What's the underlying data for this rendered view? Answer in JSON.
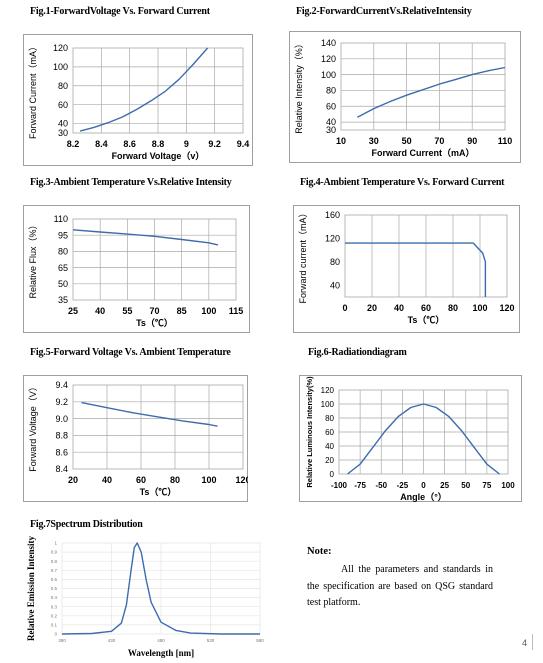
{
  "titles": {
    "fig1": "Fig.1-ForwardVoltage Vs. Forward Current",
    "fig2": "Fig.2-ForwardCurrentVs.RelativeIntensity",
    "fig3": "Fig.3-Ambient Temperature Vs.Relative Intensity",
    "fig4": "Fig.4-Ambient Temperature Vs. Forward Current",
    "fig5": "Fig.5-Forward Voltage Vs. Ambient Temperature",
    "fig6": "Fig.6-Radiationdiagram",
    "fig7": "Fig.7Spectrum Distribution"
  },
  "note": {
    "title": "Note:",
    "body": "All the parameters and standards in the specification are based on QSG standard test platform."
  },
  "page_number": "4",
  "chart_data": [
    {
      "id": "fig1",
      "type": "line",
      "title": "",
      "xlabel": "Forward Voltage（v）",
      "ylabel": "Forward Current（mA）",
      "xlim": [
        8.2,
        9.4
      ],
      "ylim": [
        30,
        120
      ],
      "xticks": [
        "8.2",
        "8.4",
        "8.6",
        "8.8",
        "9",
        "9.2",
        "9.4"
      ],
      "yticks": [
        "30",
        "40",
        "60",
        "80",
        "100",
        "120"
      ],
      "x": [
        8.25,
        8.35,
        8.45,
        8.55,
        8.65,
        8.75,
        8.85,
        8.95,
        9.05,
        9.15
      ],
      "y": [
        32,
        36,
        41,
        47,
        55,
        64,
        74,
        87,
        103,
        120
      ],
      "color": "#3d6cae"
    },
    {
      "id": "fig2",
      "type": "line",
      "title": "",
      "xlabel": "Forward Current（mA）",
      "ylabel": "Relative Intensity（%）",
      "xlim": [
        10,
        110
      ],
      "ylim": [
        30,
        140
      ],
      "xticks": [
        "10",
        "30",
        "50",
        "70",
        "90",
        "110"
      ],
      "yticks": [
        "30",
        "40",
        "60",
        "80",
        "100",
        "120",
        "140"
      ],
      "x": [
        20,
        30,
        40,
        50,
        60,
        70,
        80,
        90,
        100,
        110
      ],
      "y": [
        46,
        57,
        66,
        74,
        81,
        88,
        94,
        100,
        105,
        109
      ],
      "color": "#3d6cae"
    },
    {
      "id": "fig3",
      "type": "line",
      "title": "",
      "xlabel": "Ts（℃）",
      "ylabel": "Relative Flux（%）",
      "xlim": [
        25,
        115
      ],
      "ylim": [
        35,
        110
      ],
      "xticks": [
        "25",
        "40",
        "55",
        "70",
        "85",
        "100",
        "115"
      ],
      "yticks": [
        "35",
        "50",
        "65",
        "80",
        "95",
        "110"
      ],
      "x": [
        25,
        40,
        55,
        70,
        85,
        100,
        105
      ],
      "y": [
        100,
        98,
        96,
        94,
        91,
        88,
        86
      ],
      "color": "#3d6cae"
    },
    {
      "id": "fig4",
      "type": "line",
      "title": "",
      "xlabel": "Ts（℃）",
      "ylabel": "Forward current（mA）",
      "xlim": [
        0,
        120
      ],
      "ylim": [
        20,
        160
      ],
      "xticks": [
        "0",
        "20",
        "40",
        "60",
        "80",
        "100",
        "120"
      ],
      "yticks": [
        "40",
        "80",
        "120",
        "160"
      ],
      "x": [
        0,
        95,
        102,
        104,
        104
      ],
      "y": [
        112,
        112,
        95,
        80,
        20
      ],
      "color": "#3d6cae"
    },
    {
      "id": "fig5",
      "type": "line",
      "title": "",
      "xlabel": "Ts（℃）",
      "ylabel": "Forward Voltage（V）",
      "xlim": [
        20,
        120
      ],
      "ylim": [
        8.4,
        9.4
      ],
      "xticks": [
        "20",
        "40",
        "60",
        "80",
        "100",
        "120"
      ],
      "yticks": [
        "8.4",
        "8.6",
        "8.8",
        "9.0",
        "9.2",
        "9.4"
      ],
      "x": [
        25,
        40,
        55,
        70,
        85,
        100,
        105
      ],
      "y": [
        9.19,
        9.13,
        9.07,
        9.02,
        8.97,
        8.93,
        8.91
      ],
      "color": "#3d6cae"
    },
    {
      "id": "fig6",
      "type": "line",
      "title": "",
      "xlabel": "Angle（°）",
      "ylabel": "Relative Luminous Intensity(%)",
      "xlim": [
        -100,
        100
      ],
      "ylim": [
        0,
        120
      ],
      "xticks": [
        "-100",
        "-75",
        "-50",
        "-25",
        "0",
        "25",
        "50",
        "75",
        "100"
      ],
      "yticks": [
        "0",
        "20",
        "40",
        "60",
        "80",
        "100",
        "120"
      ],
      "x": [
        -90,
        -75,
        -60,
        -45,
        -30,
        -15,
        0,
        15,
        30,
        45,
        60,
        75,
        90
      ],
      "y": [
        0,
        14,
        38,
        62,
        82,
        95,
        100,
        95,
        82,
        62,
        38,
        14,
        0
      ],
      "color": "#3d6cae"
    },
    {
      "id": "fig7",
      "type": "line",
      "title": "",
      "xlabel": "Wavelength [nm]",
      "ylabel": "Relative Emission Intensity",
      "xlim": [
        380,
        580
      ],
      "ylim": [
        0,
        1
      ],
      "xticks": [
        "380",
        "430",
        "480",
        "530",
        "580"
      ],
      "yticks": [
        "0",
        "0.1",
        "0.2",
        "0.3",
        "0.4",
        "0.5",
        "0.6",
        "0.7",
        "0.8",
        "0.9",
        "1"
      ],
      "x": [
        380,
        410,
        430,
        440,
        445,
        450,
        453,
        456,
        460,
        465,
        470,
        480,
        495,
        510,
        540,
        580
      ],
      "y": [
        0,
        0.005,
        0.03,
        0.12,
        0.32,
        0.72,
        0.95,
        1.0,
        0.9,
        0.6,
        0.35,
        0.13,
        0.04,
        0.01,
        0,
        0
      ],
      "color": "#3d6cae"
    }
  ]
}
